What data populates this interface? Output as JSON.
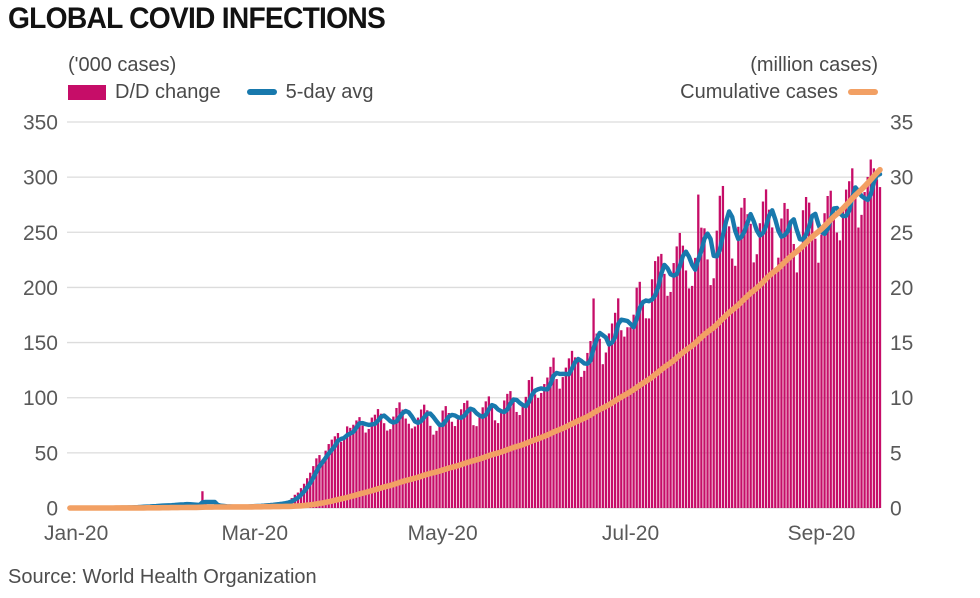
{
  "title": "GLOBAL COVID INFECTIONS",
  "footer": {
    "source": "Source: World Health Organization"
  },
  "colors": {
    "bar": "#c60d68",
    "avg_line": "#1879ad",
    "cumulative_line": "#f2a064",
    "grid": "#dcdcdc",
    "axis_text": "#595959",
    "legend_text": "#4a4a4a",
    "title_text": "#121212"
  },
  "chart_data": {
    "type": "bar",
    "title": "GLOBAL COVID INFECTIONS",
    "grid": true,
    "left_axis": {
      "label": "('000 cases)",
      "range": [
        0,
        350
      ],
      "ticks": [
        0,
        50,
        100,
        150,
        200,
        250,
        300,
        350
      ]
    },
    "right_axis": {
      "label": "(million cases)",
      "range": [
        0,
        35
      ],
      "ticks": [
        0,
        5,
        10,
        15,
        20,
        25,
        30,
        35
      ]
    },
    "x_axis": {
      "start": "Jan-20",
      "end": "Sep-20",
      "unit": "days",
      "ticks": [
        {
          "label": "Jan-20",
          "day": 2
        },
        {
          "label": "Mar-20",
          "day": 60
        },
        {
          "label": "May-20",
          "day": 121
        },
        {
          "label": "Jul-20",
          "day": 182
        },
        {
          "label": "Sep-20",
          "day": 244
        }
      ]
    },
    "legend_position": "top",
    "series": [
      {
        "name": "D/D change",
        "type": "bar",
        "axis": "left",
        "units": "thousand cases per day",
        "values": [
          0.3,
          0.3,
          0.3,
          0.3,
          0.3,
          0.3,
          0.3,
          0.3,
          0.3,
          0.3,
          0.3,
          0.3,
          0.3,
          0.3,
          0.3,
          0.3,
          0.3,
          0.5,
          0.5,
          0.7,
          0.9,
          1.0,
          1.1,
          1.3,
          1.4,
          1.5,
          1.6,
          2.3,
          2.0,
          2.4,
          2.5,
          2.6,
          2.8,
          2.6,
          3.2,
          3.9,
          3.7,
          3.4,
          3.4,
          2.7,
          3.0,
          2.5,
          2.0,
          15.2,
          5.1,
          2.6,
          2.2,
          2.1,
          1.9,
          1.8,
          0.9,
          1.0,
          1.1,
          1.3,
          0.9,
          1.1,
          1.3,
          1.5,
          1.7,
          1.9,
          2.0,
          2.2,
          2.4,
          2.6,
          2.9,
          3.1,
          3.5,
          4.0,
          4.3,
          4.7,
          5.4,
          6.5,
          9.0,
          12.0,
          14.0,
          18.0,
          22.0,
          27.0,
          32.0,
          38.0,
          45.0,
          48.0,
          44.0,
          52.0,
          58.0,
          62.0,
          65.0,
          68.0,
          60.0,
          63.0,
          74.0,
          72.7,
          75.5,
          79.4,
          82.4,
          74.7,
          68.4,
          71.7,
          82.0,
          84.6,
          89.7,
          85.5,
          76.9,
          70.2,
          71.5,
          82.9,
          90.7,
          95.8,
          89.2,
          81.1,
          76.4,
          72.2,
          73.9,
          82.0,
          89.3,
          93.7,
          88.6,
          74.5,
          66.5,
          70.0,
          77.2,
          88.4,
          92.4,
          86.1,
          78.2,
          74.3,
          80.3,
          89.5,
          95.2,
          97.4,
          88.0,
          75.1,
          74.2,
          84.8,
          91.3,
          96.7,
          101.2,
          92.3,
          79.5,
          77.0,
          88.8,
          97.5,
          103.5,
          106.0,
          96.1,
          87.1,
          84.3,
          93.3,
          100.8,
          116.0,
          119.0,
          103.0,
          99.8,
          104.3,
          112.4,
          118.3,
          128.0,
          136.4,
          116.9,
          108.2,
          118.7,
          127.3,
          135.7,
          142.5,
          136.6,
          133.2,
          118.9,
          124.4,
          140.6,
          151.4,
          190.0,
          158.2,
          153.5,
          130.4,
          141.0,
          158.3,
          167.3,
          177.0,
          190.1,
          161.2,
          155.4,
          163.9,
          163.9,
          175.3,
          199.8,
          205.1,
          188.7,
          172.0,
          171.9,
          207.4,
          223.9,
          228.1,
          230.4,
          212.3,
          192.4,
          195.9,
          222.1,
          237.2,
          249.4,
          237.9,
          215.4,
          199.1,
          201.4,
          226.8,
          284.2,
          254.2,
          253.6,
          225.4,
          202.1,
          208.3,
          251.5,
          283.1,
          292.0,
          262.9,
          255.4,
          226.2,
          219.6,
          255.0,
          272.3,
          281.1,
          266.4,
          257.7,
          222.7,
          230.1,
          258.2,
          277.9,
          288.9,
          270.5,
          254.4,
          216.2,
          227.0,
          262.5,
          276.6,
          271.2,
          259.1,
          239.4,
          213.6,
          235.1,
          270.0,
          282.0,
          276.9,
          260.9,
          244.2,
          222.4,
          248.0,
          267.3,
          282.9,
          287.7,
          272.6,
          249.8,
          242.7,
          270.5,
          288.7,
          296.3,
          308.0,
          290.0,
          254.3,
          265.8,
          286.5,
          300.2,
          316.0,
          308.0,
          298.0,
          291.0
        ]
      },
      {
        "name": "5-day avg",
        "type": "line",
        "axis": "left",
        "units": "thousand cases per day",
        "derived": "trailing 5-day moving average of the D/D change series"
      },
      {
        "name": "Cumulative cases",
        "type": "line",
        "axis": "right",
        "units": "million cases",
        "derived": "running sum of the D/D change series divided by 1000; reaches about 30.8 million at the right edge"
      }
    ],
    "source": "Source: World Health Organization"
  }
}
